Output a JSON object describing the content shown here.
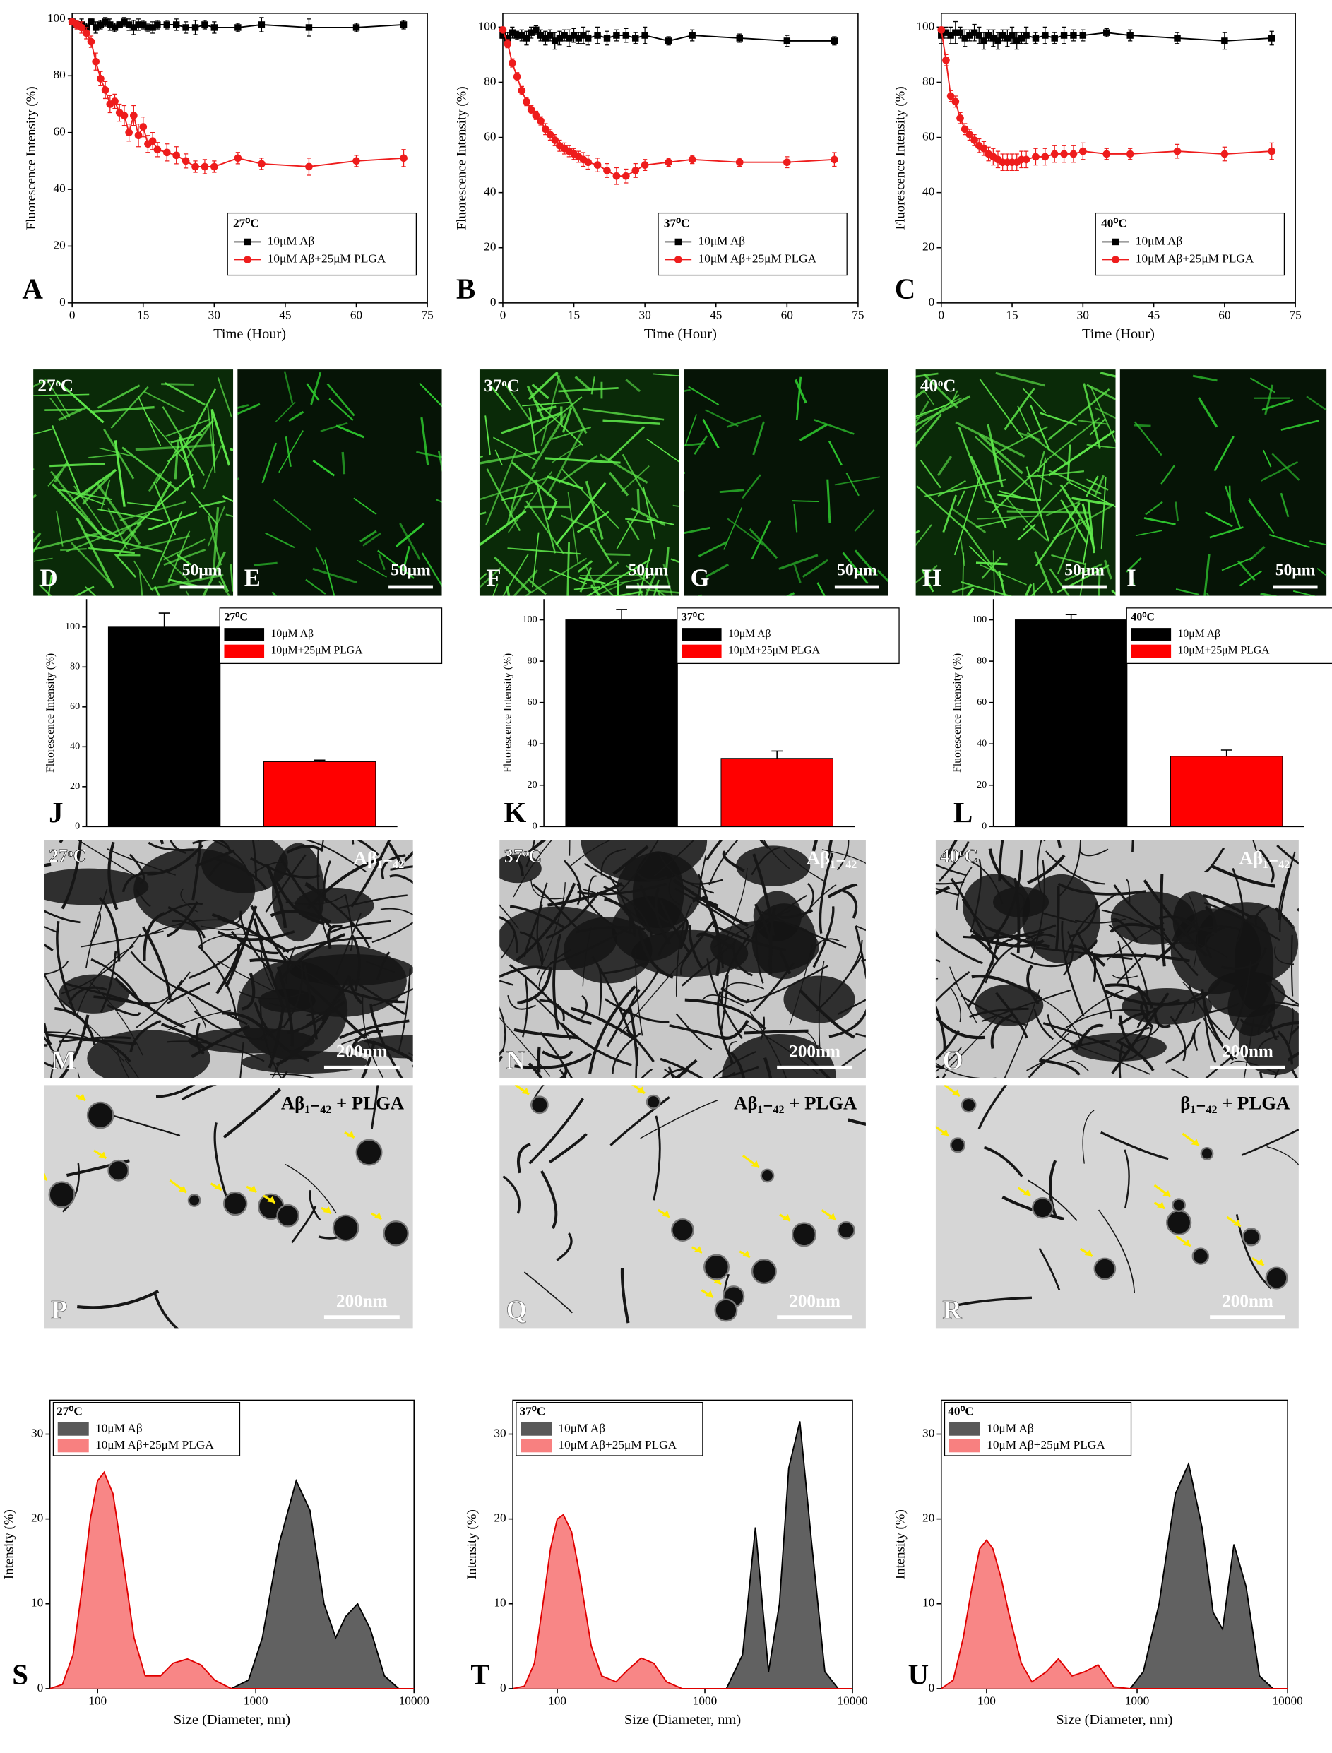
{
  "chart_data": [
    {
      "type": "line",
      "panel_label": "A",
      "legend_title": "27⁰C",
      "x_label": "Time (Hour)",
      "y_label": "Fluorescence Intensity (%)",
      "x": [
        0,
        1,
        2,
        3,
        4,
        5,
        6,
        7,
        8,
        9,
        10,
        11,
        12,
        13,
        14,
        15,
        16,
        17,
        18,
        20,
        22,
        24,
        26,
        28,
        30,
        35,
        40,
        50,
        60,
        70
      ],
      "series": [
        {
          "name": "10μM Aβ",
          "color": "#000000",
          "marker": "square",
          "values": [
            99,
            98,
            98,
            97,
            99,
            97,
            98,
            99,
            98,
            97,
            98,
            99,
            98,
            97,
            98,
            98,
            97,
            97,
            98,
            98,
            98,
            97,
            97,
            98,
            97,
            97,
            98,
            97,
            97,
            98
          ],
          "errors": [
            1,
            1.5,
            2,
            1.5,
            1,
            2,
            1.5,
            1.5,
            2,
            1.5,
            1,
            1.5,
            2,
            2.5,
            2,
            1.5,
            1.5,
            2,
            1.5,
            1.5,
            2,
            2,
            2.5,
            1.5,
            2,
            1.5,
            2.5,
            3,
            1.5,
            1.5
          ]
        },
        {
          "name": "10μM Aβ+25μM PLGA",
          "color": "#ee1c1c",
          "marker": "circle",
          "values": [
            99,
            98,
            97,
            95,
            92,
            85,
            79,
            75,
            70,
            71,
            67,
            66,
            60,
            66,
            59,
            62,
            56,
            57,
            54,
            53,
            52,
            50,
            48,
            48,
            48,
            51,
            49,
            48,
            50,
            51
          ],
          "errors": [
            1,
            1.5,
            2,
            2,
            2,
            3,
            2.5,
            3,
            3,
            2.5,
            3,
            3.5,
            3,
            3.5,
            4,
            3.5,
            3,
            3,
            2.5,
            3,
            3,
            2.5,
            2,
            2.5,
            2,
            2,
            2,
            3,
            2,
            3
          ]
        }
      ],
      "xlim": [
        0,
        75
      ],
      "xticks": [
        0,
        15,
        30,
        45,
        60,
        75
      ],
      "ylim": [
        0,
        102
      ],
      "yticks": [
        0,
        20,
        40,
        60,
        80,
        100
      ]
    },
    {
      "type": "line",
      "panel_label": "B",
      "legend_title": "37⁰C",
      "x_label": "Time (Hour)",
      "y_label": "Fluorescence Intensity (%)",
      "x": [
        0,
        1,
        2,
        3,
        4,
        5,
        6,
        7,
        8,
        9,
        10,
        11,
        12,
        13,
        14,
        15,
        16,
        17,
        18,
        20,
        22,
        24,
        26,
        28,
        30,
        35,
        40,
        50,
        60,
        70
      ],
      "series": [
        {
          "name": "10μM Aβ",
          "color": "#000000",
          "marker": "square",
          "values": [
            97,
            96,
            98,
            97,
            97,
            96,
            98,
            99,
            97,
            96,
            97,
            95,
            96,
            97,
            96,
            97,
            96,
            97,
            96,
            97,
            96,
            97,
            97,
            96,
            97,
            95,
            97,
            96,
            95,
            95
          ],
          "errors": [
            1,
            2,
            2,
            1.5,
            2,
            2.5,
            2,
            1.5,
            2,
            2.5,
            2,
            3,
            2.5,
            2,
            3,
            2.5,
            2,
            3,
            2.5,
            3,
            2.5,
            2,
            2.5,
            2,
            3,
            1.5,
            2,
            1.5,
            2,
            1.5
          ]
        },
        {
          "name": "10μM Aβ+25μM PLGA",
          "color": "#ee1c1c",
          "marker": "circle",
          "values": [
            99,
            94,
            87,
            82,
            77,
            73,
            70,
            68,
            66,
            63,
            61,
            59,
            57,
            56,
            55,
            54,
            53,
            52,
            51,
            50,
            48,
            46,
            46,
            48,
            50,
            51,
            52,
            51,
            51,
            52
          ],
          "errors": [
            1,
            1.5,
            1.5,
            1.5,
            1.5,
            1.5,
            1.5,
            1.5,
            1.5,
            2,
            2,
            2,
            2,
            2,
            2,
            2,
            2,
            2.5,
            2.5,
            2.5,
            2.5,
            3,
            2.5,
            2.5,
            2,
            1.5,
            1.5,
            1.5,
            2,
            2.5
          ]
        }
      ],
      "xlim": [
        0,
        75
      ],
      "xticks": [
        0,
        15,
        30,
        45,
        60,
        75
      ],
      "ylim": [
        0,
        105
      ],
      "yticks": [
        0,
        20,
        40,
        60,
        80,
        100
      ]
    },
    {
      "type": "line",
      "panel_label": "C",
      "legend_title": "40⁰C",
      "x_label": "Time (Hour)",
      "y_label": "Fluorescence Intensity (%)",
      "x": [
        0,
        1,
        2,
        3,
        4,
        5,
        6,
        7,
        8,
        9,
        10,
        11,
        12,
        13,
        14,
        15,
        16,
        17,
        18,
        20,
        22,
        24,
        26,
        28,
        30,
        35,
        40,
        50,
        60,
        70
      ],
      "series": [
        {
          "name": "10μM Aβ",
          "color": "#000000",
          "marker": "square",
          "values": [
            97,
            98,
            97,
            98,
            98,
            96,
            97,
            98,
            97,
            95,
            97,
            96,
            95,
            97,
            96,
            97,
            95,
            96,
            97,
            96,
            97,
            96,
            97,
            97,
            97,
            98,
            97,
            96,
            95,
            96
          ],
          "errors": [
            3,
            2,
            3,
            4,
            2,
            3,
            2,
            3,
            3,
            3,
            2,
            3,
            3,
            2,
            3,
            3,
            3,
            2,
            3,
            2,
            3,
            2,
            3,
            2,
            2,
            1.5,
            2,
            2,
            3,
            2.5
          ]
        },
        {
          "name": "10μM Aβ+25μM PLGA",
          "color": "#ee1c1c",
          "marker": "circle",
          "values": [
            99,
            88,
            75,
            73,
            67,
            63,
            61,
            59,
            57,
            56,
            54,
            53,
            52,
            51,
            51,
            51,
            51,
            52,
            52,
            53,
            53,
            54,
            54,
            54,
            55,
            54,
            54,
            55,
            54,
            55
          ],
          "errors": [
            1,
            2,
            2,
            2,
            2,
            2,
            2,
            2,
            2.5,
            2.5,
            2.5,
            3,
            3,
            3,
            3,
            3,
            3,
            3,
            3,
            3,
            3,
            3,
            3,
            3,
            3,
            2,
            2,
            2.5,
            2.5,
            3
          ]
        }
      ],
      "xlim": [
        0,
        75
      ],
      "xticks": [
        0,
        15,
        30,
        45,
        60,
        75
      ],
      "ylim": [
        0,
        105
      ],
      "yticks": [
        0,
        20,
        40,
        60,
        80,
        100
      ]
    },
    {
      "type": "bar",
      "panel_label": "J",
      "legend_title": "27⁰C",
      "y_label": "Fluorescence Intensity (%)",
      "series": [
        {
          "name": "10μM Aβ",
          "color": "#000000",
          "values": [
            100
          ],
          "errors": [
            7
          ]
        },
        {
          "name": "10μM+25μM PLGA",
          "color": "#ff0000",
          "values": [
            32.5
          ],
          "errors": [
            0.8
          ]
        }
      ],
      "ylim": [
        0,
        114
      ],
      "yticks": [
        0,
        20,
        40,
        60,
        80,
        100
      ]
    },
    {
      "type": "bar",
      "panel_label": "K",
      "legend_title": "37⁰C",
      "y_label": "Fluorescence Intensity (%)",
      "series": [
        {
          "name": "10μM Aβ",
          "color": "#000000",
          "values": [
            100
          ],
          "errors": [
            5
          ]
        },
        {
          "name": "10μM+25μM PLGA",
          "color": "#ff0000",
          "values": [
            33
          ],
          "errors": [
            3.5
          ]
        }
      ],
      "ylim": [
        0,
        110
      ],
      "yticks": [
        0,
        20,
        40,
        60,
        80,
        100
      ]
    },
    {
      "type": "bar",
      "panel_label": "L",
      "legend_title": "40⁰C",
      "y_label": "Fluorescence Intensity (%)",
      "series": [
        {
          "name": "10μM Aβ",
          "color": "#000000",
          "values": [
            100
          ],
          "errors": [
            2.5
          ]
        },
        {
          "name": "10μM+25μM PLGA",
          "color": "#ff0000",
          "values": [
            34
          ],
          "errors": [
            3
          ]
        }
      ],
      "ylim": [
        0,
        110
      ],
      "yticks": [
        0,
        20,
        40,
        60,
        80,
        100
      ]
    },
    {
      "type": "area",
      "panel_label": "S",
      "legend_title": "27⁰C",
      "x_label": "Size (Diameter, nm)",
      "y_label": "Intensity (%)",
      "xscale": "log",
      "x": [
        50,
        60,
        70,
        80,
        90,
        100,
        110,
        125,
        140,
        170,
        200,
        250,
        300,
        370,
        450,
        550,
        700,
        900,
        1100,
        1400,
        1800,
        2200,
        2700,
        3200,
        3700,
        4400,
        5300,
        6500,
        8000,
        10000
      ],
      "series": [
        {
          "name": "10μM Aβ",
          "color": "#595959",
          "edge_color": "#000000",
          "values": [
            0,
            0,
            0,
            0,
            0,
            0,
            0,
            0,
            0,
            0,
            0,
            0,
            0,
            0,
            0,
            0,
            0,
            1,
            6,
            17,
            24.5,
            21,
            10,
            6,
            8.5,
            10,
            7,
            1.5,
            0,
            0
          ]
        },
        {
          "name": "10μM Aβ+25μM PLGA",
          "color": "#f88080",
          "edge_color": "#e00000",
          "values": [
            0,
            0.5,
            4,
            12,
            20,
            24.5,
            25.5,
            23,
            17,
            6,
            1.5,
            1.5,
            3,
            3.5,
            2.8,
            1,
            0,
            0,
            0,
            0,
            0,
            0,
            0,
            0,
            0,
            0,
            0,
            0,
            0,
            0
          ]
        }
      ],
      "xlim": [
        50,
        10000
      ],
      "xticks": [
        100,
        1000,
        10000
      ],
      "ylim": [
        0,
        34
      ],
      "yticks": [
        0,
        10,
        20,
        30
      ]
    },
    {
      "type": "area",
      "panel_label": "T",
      "legend_title": "37⁰C",
      "x_label": "Size (Diameter, nm)",
      "y_label": "Intensity (%)",
      "xscale": "log",
      "x": [
        50,
        60,
        70,
        80,
        90,
        100,
        110,
        125,
        140,
        170,
        200,
        250,
        300,
        370,
        450,
        550,
        700,
        900,
        1100,
        1400,
        1800,
        2200,
        2700,
        3200,
        3700,
        4400,
        5300,
        6500,
        8000,
        10000
      ],
      "series": [
        {
          "name": "10μM Aβ",
          "color": "#595959",
          "edge_color": "#000000",
          "values": [
            0,
            0,
            0,
            0,
            0,
            0,
            0,
            0,
            0,
            0,
            0,
            0,
            0,
            0,
            0,
            0,
            0,
            0,
            0,
            0,
            4,
            19,
            2,
            10,
            26,
            31.5,
            17,
            2,
            0,
            0
          ]
        },
        {
          "name": "10μM Aβ+25μM PLGA",
          "color": "#f88080",
          "edge_color": "#e00000",
          "values": [
            0,
            0.3,
            3,
            10,
            16.5,
            20,
            20.5,
            18.5,
            14,
            5,
            1.5,
            0.8,
            2.2,
            3.6,
            3,
            0.8,
            0,
            0,
            0,
            0,
            0,
            0,
            0,
            0,
            0,
            0,
            0,
            0,
            0,
            0
          ]
        }
      ],
      "xlim": [
        50,
        10000
      ],
      "xticks": [
        100,
        1000,
        10000
      ],
      "ylim": [
        0,
        34
      ],
      "yticks": [
        0,
        10,
        20,
        30
      ]
    },
    {
      "type": "area",
      "panel_label": "U",
      "legend_title": "40⁰C",
      "x_label": "Size (Diameter, nm)",
      "y_label": "Intensity (%)",
      "xscale": "log",
      "x": [
        50,
        60,
        70,
        80,
        90,
        100,
        110,
        125,
        140,
        170,
        200,
        250,
        300,
        370,
        450,
        550,
        700,
        900,
        1100,
        1400,
        1800,
        2200,
        2700,
        3200,
        3700,
        4400,
        5300,
        6500,
        8000,
        10000
      ],
      "series": [
        {
          "name": "10μM Aβ",
          "color": "#595959",
          "edge_color": "#000000",
          "values": [
            0,
            0,
            0,
            0,
            0,
            0,
            0,
            0,
            0,
            0,
            0,
            0,
            0,
            0,
            0,
            0,
            0,
            0,
            2,
            10,
            23,
            26.5,
            19,
            9,
            7,
            17,
            12,
            1.5,
            0,
            0
          ]
        },
        {
          "name": "10μM Aβ+25μM PLGA",
          "color": "#f88080",
          "edge_color": "#e00000",
          "values": [
            0,
            1,
            6,
            12,
            16.5,
            17.5,
            16.5,
            13,
            9,
            3,
            0.8,
            2,
            3.5,
            1.5,
            2,
            2.8,
            0.2,
            0,
            0,
            0,
            0,
            0,
            0,
            0,
            0,
            0,
            0,
            0,
            0,
            0
          ]
        }
      ],
      "xlim": [
        50,
        10000
      ],
      "xticks": [
        100,
        1000,
        10000
      ],
      "ylim": [
        0,
        34
      ],
      "yticks": [
        0,
        10,
        20,
        30
      ]
    }
  ],
  "micrographs": [
    {
      "panel_label": "D",
      "temperature": "27ᵒC",
      "scale_bar": "50μm"
    },
    {
      "panel_label": "E",
      "scale_bar": "50μm"
    },
    {
      "panel_label": "F",
      "temperature": "37ᵒC",
      "scale_bar": "50μm"
    },
    {
      "panel_label": "G",
      "scale_bar": "50μm"
    },
    {
      "panel_label": "H",
      "temperature": "40ᵒC",
      "scale_bar": "50μm"
    },
    {
      "panel_label": "I",
      "scale_bar": "50μm"
    }
  ],
  "tem_images": [
    {
      "panel_label": "M",
      "temperature": "27ᵒC",
      "sample": "Aβ₁₋₄₂",
      "scale_bar": "200nm"
    },
    {
      "panel_label": "N",
      "temperature": "37ᵒC",
      "sample": "Aβ₁₋₄₂",
      "scale_bar": "200nm"
    },
    {
      "panel_label": "O",
      "temperature": "40ᵒC",
      "sample": "Aβ₁₋₄₂",
      "scale_bar": "200nm"
    },
    {
      "panel_label": "P",
      "sample": "Aβ₁₋₄₂ + PLGA",
      "scale_bar": "200nm"
    },
    {
      "panel_label": "Q",
      "sample": "Aβ₁₋₄₂ + PLGA",
      "scale_bar": "200nm"
    },
    {
      "panel_label": "R",
      "sample": "β₁₋₄₂ + PLGA",
      "scale_bar": "200nm"
    }
  ]
}
